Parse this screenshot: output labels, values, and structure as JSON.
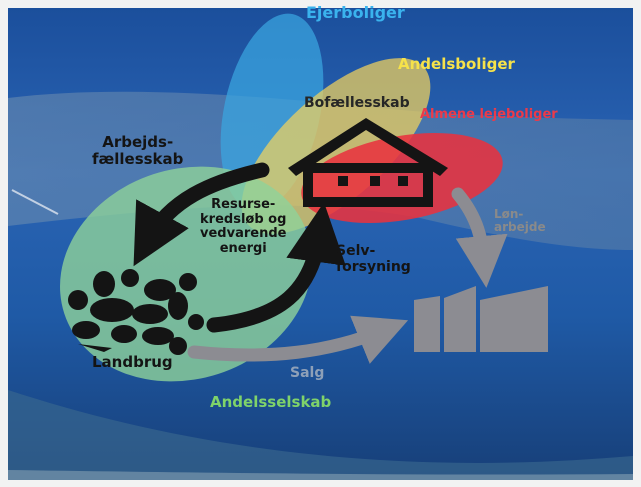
{
  "labels": {
    "ejerboliger": "Ejerboliger",
    "andelsboliger": "Andelsboliger",
    "bofaellesskab": "Bofællesskab",
    "almene": "Almene lejeboliger",
    "arbejdsfaellesskab": "Arbejds-\nfællesskab",
    "ressource": "Resurse-\nkredsløb og\nvedvarende\nenergi",
    "selvforsyning": "Selv-\nforsyning",
    "lonarbejde": "Løn-\narbejde",
    "landbrug": "Landbrug",
    "salg": "Salg",
    "andelsselskab": "Andelsselskab"
  },
  "colors": {
    "blue_ellipse": "#3aa6e0",
    "yellow_ellipse": "#f3d35c",
    "red_ellipse": "#e8323f",
    "green_ellipse": "#8fd29a",
    "black": "#141414",
    "grey": "#8c8c92",
    "ejerboliger_text": "#3ab3ee",
    "andelsboliger_text": "#f6e24a",
    "almene_text": "#ec3a49",
    "andelsselskab_text": "#7fd36a",
    "salg_text": "#8ea0b8",
    "lonarbejde_text": "#8a8a8a"
  },
  "icons": [
    "house-icon",
    "farm-produce-icon",
    "city-buildings-icon"
  ]
}
